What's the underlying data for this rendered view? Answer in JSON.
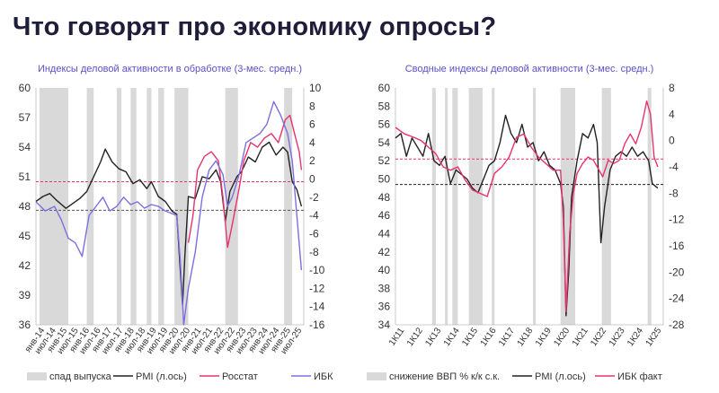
{
  "title": "Что говорят про экономику опросы?",
  "colors": {
    "title": "#1f1e3a",
    "chart_title": "#5b4fc8",
    "recession": "#d9d9d9",
    "pmi": "#222222",
    "rosstat": "#e8326e",
    "ibk": "#7b6fe0",
    "ref_red": "#e8326e",
    "ref_gray": "#555555"
  },
  "chart_data": [
    {
      "type": "line",
      "title": "Индексы деловой активности в обработке (3-мес. средн.)",
      "x_labels": [
        "янв-14",
        "июл-14",
        "янв-15",
        "июл-15",
        "янв-16",
        "июл-16",
        "янв-17",
        "июл-17",
        "янв-18",
        "июл-18",
        "янв-19",
        "июл-19",
        "янв-20",
        "июл-20",
        "янв-21",
        "июл-21",
        "янв-22",
        "июл-22",
        "янв-23",
        "июл-23",
        "янв-24",
        "июл-24",
        "янв-25",
        "июл-25"
      ],
      "x_start": 2014.0,
      "x_end": 2025.6,
      "y_left": {
        "min": 36,
        "max": 60,
        "ticks": [
          36,
          39,
          42,
          45,
          48,
          51,
          54,
          57,
          60
        ]
      },
      "y_right": {
        "min": -16,
        "max": 10,
        "ticks": [
          -16,
          -14,
          -12,
          -10,
          -8,
          -6,
          -4,
          -2,
          0,
          2,
          4,
          6,
          8,
          10
        ]
      },
      "ref_lines": [
        {
          "axis": "left",
          "value": 50.5,
          "color": "#e8326e"
        },
        {
          "axis": "left",
          "value": 47.6,
          "color": "#555555"
        }
      ],
      "shaded_periods": [
        [
          2014.15,
          2015.4
        ],
        [
          2016.2,
          2016.5
        ],
        [
          2017.5,
          2017.7
        ],
        [
          2018.1,
          2018.35
        ],
        [
          2018.8,
          2019.0
        ],
        [
          2019.3,
          2019.55
        ],
        [
          2020.0,
          2020.6
        ],
        [
          2022.2,
          2022.75
        ],
        [
          2024.75,
          2025.1
        ]
      ],
      "legend": [
        "спад выпуска",
        "PMI (л.ось)",
        "Росстат",
        "ИБК"
      ],
      "series": [
        {
          "name": "PMI (л.ось)",
          "axis": "left",
          "color": "#222222",
          "x": [
            2014.0,
            2014.3,
            2014.6,
            2014.9,
            2015.1,
            2015.3,
            2015.6,
            2015.9,
            2016.2,
            2016.5,
            2016.8,
            2017.0,
            2017.3,
            2017.6,
            2017.9,
            2018.2,
            2018.5,
            2018.8,
            2019.0,
            2019.3,
            2019.6,
            2019.9,
            2020.1,
            2020.25,
            2020.35,
            2020.45,
            2020.6,
            2020.9,
            2021.2,
            2021.5,
            2021.8,
            2022.0,
            2022.2,
            2022.4,
            2022.7,
            2022.9,
            2023.2,
            2023.5,
            2023.8,
            2024.1,
            2024.4,
            2024.7,
            2024.9,
            2025.1,
            2025.3,
            2025.5
          ],
          "y": [
            48.5,
            49.0,
            49.3,
            48.6,
            48.2,
            47.8,
            48.3,
            48.8,
            49.5,
            51.0,
            52.5,
            53.8,
            52.5,
            51.8,
            51.5,
            50.3,
            50.7,
            49.8,
            50.5,
            49.0,
            48.5,
            47.5,
            47.2,
            41.5,
            38.0,
            43.0,
            49.0,
            48.8,
            51.0,
            50.8,
            51.7,
            50.5,
            46.5,
            49.5,
            51.0,
            51.5,
            53.0,
            52.5,
            54.0,
            54.5,
            53.2,
            54.0,
            53.5,
            50.5,
            49.7,
            48.0
          ]
        },
        {
          "name": "Росстат",
          "axis": "right",
          "color": "#e8326e",
          "x": [
            2020.6,
            2020.8,
            2021.0,
            2021.3,
            2021.6,
            2021.9,
            2022.1,
            2022.3,
            2022.5,
            2022.8,
            2023.0,
            2023.3,
            2023.6,
            2023.9,
            2024.2,
            2024.5,
            2024.8,
            2025.0,
            2025.2,
            2025.4,
            2025.5
          ],
          "y": [
            -7.0,
            -4.0,
            1.0,
            2.5,
            3.0,
            2.0,
            -2.0,
            -7.5,
            -5.0,
            -1.0,
            2.0,
            4.0,
            3.5,
            4.5,
            5.0,
            4.0,
            6.5,
            7.0,
            5.0,
            3.0,
            1.0
          ]
        },
        {
          "name": "ИБК",
          "axis": "right",
          "color": "#7b6fe0",
          "x": [
            2014.0,
            2014.4,
            2014.8,
            2015.1,
            2015.4,
            2015.7,
            2016.0,
            2016.3,
            2016.6,
            2016.9,
            2017.2,
            2017.5,
            2017.8,
            2018.1,
            2018.4,
            2018.7,
            2019.0,
            2019.3,
            2019.6,
            2019.9,
            2020.1,
            2020.25,
            2020.4,
            2020.6,
            2020.9,
            2021.2,
            2021.5,
            2021.8,
            2022.1,
            2022.3,
            2022.5,
            2022.8,
            2023.1,
            2023.4,
            2023.7,
            2024.0,
            2024.3,
            2024.6,
            2024.9,
            2025.1,
            2025.3,
            2025.5
          ],
          "y": [
            -2.5,
            -3.5,
            -3.0,
            -4.5,
            -6.5,
            -7.0,
            -8.5,
            -4.0,
            -3.0,
            -2.0,
            -3.5,
            -3.0,
            -2.0,
            -2.8,
            -2.5,
            -3.2,
            -2.8,
            -3.0,
            -3.5,
            -3.8,
            -4.0,
            -9.0,
            -16.0,
            -12.0,
            -8.0,
            -2.0,
            1.0,
            2.0,
            0.5,
            -3.0,
            -2.0,
            0.5,
            4.0,
            4.5,
            5.0,
            6.0,
            8.5,
            7.0,
            5.0,
            2.0,
            -4.0,
            -10.0
          ]
        }
      ]
    },
    {
      "type": "line",
      "title": "Сводные индексы деловой активности (3-мес. средн.)",
      "x_labels": [
        "1К11",
        "1К12",
        "1К13",
        "1К14",
        "1К15",
        "1К16",
        "1К17",
        "1К18",
        "1К19",
        "1К20",
        "1К21",
        "1К22",
        "1К23",
        "1К24",
        "1К25"
      ],
      "x_start": 2011.0,
      "x_end": 2025.6,
      "y_left": {
        "min": 34,
        "max": 60,
        "ticks": [
          34,
          36,
          38,
          40,
          42,
          44,
          46,
          48,
          50,
          52,
          54,
          56,
          58,
          60
        ]
      },
      "y_right": {
        "min": -28,
        "max": 8,
        "ticks": [
          -28,
          -24,
          -20,
          -16,
          -12,
          -8,
          -4,
          0,
          4,
          8
        ]
      },
      "ref_lines": [
        {
          "axis": "left",
          "value": 52.2,
          "color": "#e8326e"
        },
        {
          "axis": "left",
          "value": 49.4,
          "color": "#222222"
        }
      ],
      "shaded_periods": [
        [
          2013.0,
          2013.2
        ],
        [
          2013.7,
          2013.85
        ],
        [
          2014.1,
          2014.4
        ],
        [
          2015.0,
          2015.75
        ],
        [
          2016.25,
          2016.4
        ],
        [
          2018.5,
          2018.65
        ],
        [
          2020.0,
          2020.8
        ],
        [
          2022.25,
          2022.75
        ],
        [
          2024.75,
          2024.95
        ]
      ],
      "legend": [
        "снижение ВВП % к/к с.к.",
        "PMI (л.ось)",
        "ИБК факт"
      ],
      "series": [
        {
          "name": "PMI (л.ось)",
          "axis": "left",
          "color": "#222222",
          "x": [
            2011.0,
            2011.3,
            2011.6,
            2011.9,
            2012.2,
            2012.5,
            2012.8,
            2013.1,
            2013.4,
            2013.7,
            2014.0,
            2014.3,
            2014.6,
            2014.9,
            2015.2,
            2015.5,
            2015.8,
            2016.1,
            2016.4,
            2016.7,
            2017.0,
            2017.3,
            2017.6,
            2017.9,
            2018.2,
            2018.5,
            2018.8,
            2019.1,
            2019.4,
            2019.7,
            2020.0,
            2020.15,
            2020.3,
            2020.45,
            2020.6,
            2020.9,
            2021.2,
            2021.5,
            2021.8,
            2022.0,
            2022.2,
            2022.4,
            2022.7,
            2023.0,
            2023.3,
            2023.6,
            2023.9,
            2024.2,
            2024.5,
            2024.8,
            2025.0,
            2025.3
          ],
          "y": [
            54.5,
            55.0,
            52.5,
            54.5,
            53.5,
            52.5,
            55.0,
            52.0,
            51.5,
            52.5,
            49.5,
            51.0,
            50.5,
            50.0,
            49.0,
            48.5,
            50.0,
            51.5,
            52.0,
            54.0,
            57.0,
            55.0,
            54.0,
            56.0,
            53.5,
            54.0,
            52.0,
            53.0,
            51.5,
            51.0,
            49.5,
            47.0,
            35.0,
            40.0,
            48.0,
            52.0,
            55.0,
            54.5,
            56.0,
            54.0,
            43.0,
            47.0,
            51.0,
            52.5,
            53.0,
            52.5,
            53.5,
            52.5,
            53.0,
            52.0,
            49.5,
            49.0
          ]
        },
        {
          "name": "ИБК факт",
          "axis": "right",
          "color": "#e8326e",
          "x": [
            2011.0,
            2011.5,
            2012.0,
            2012.4,
            2012.8,
            2013.2,
            2013.6,
            2014.0,
            2014.4,
            2014.8,
            2015.2,
            2015.6,
            2016.0,
            2016.4,
            2016.8,
            2017.2,
            2017.6,
            2018.0,
            2018.4,
            2018.8,
            2019.2,
            2019.6,
            2020.0,
            2020.15,
            2020.3,
            2020.5,
            2020.7,
            2020.9,
            2021.2,
            2021.5,
            2021.8,
            2022.1,
            2022.3,
            2022.6,
            2022.9,
            2023.2,
            2023.5,
            2023.8,
            2024.1,
            2024.4,
            2024.7,
            2024.9,
            2025.1,
            2025.3
          ],
          "y": [
            2.0,
            1.0,
            0.5,
            0.0,
            -1.0,
            -2.0,
            -4.0,
            -4.5,
            -4.0,
            -6.0,
            -7.5,
            -8.0,
            -8.5,
            -5.0,
            -4.0,
            -2.5,
            0.5,
            1.0,
            -1.0,
            -2.5,
            -3.5,
            -4.5,
            -4.5,
            -12.0,
            -26.0,
            -14.0,
            -8.0,
            -5.0,
            -3.5,
            -2.5,
            -3.0,
            -4.5,
            -5.5,
            -3.0,
            -3.5,
            -3.0,
            -0.5,
            1.0,
            -0.5,
            2.0,
            6.0,
            4.0,
            -2.5,
            -4.0
          ]
        }
      ]
    }
  ]
}
